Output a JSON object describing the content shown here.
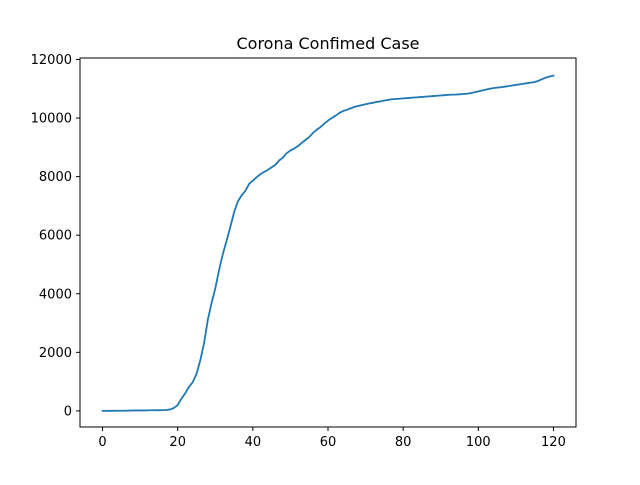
{
  "chart_data": {
    "type": "line",
    "title": "Corona Confimed Case",
    "xlabel": "",
    "ylabel": "",
    "xlim": [
      -6,
      126
    ],
    "ylim": [
      -550,
      12050
    ],
    "xticks": [
      0,
      20,
      40,
      60,
      80,
      100,
      120
    ],
    "yticks": [
      0,
      2000,
      4000,
      6000,
      8000,
      10000,
      12000
    ],
    "grid": false,
    "legend": "none",
    "series": [
      {
        "color": "#1f77b4",
        "x": [
          0,
          1,
          2,
          3,
          4,
          5,
          6,
          7,
          8,
          9,
          10,
          11,
          12,
          13,
          14,
          15,
          16,
          17,
          18,
          19,
          20,
          21,
          22,
          23,
          24,
          25,
          26,
          27,
          28,
          29,
          30,
          31,
          32,
          33,
          34,
          35,
          36,
          37,
          38,
          39,
          40,
          41,
          42,
          43,
          44,
          45,
          46,
          47,
          48,
          49,
          50,
          51,
          52,
          53,
          54,
          55,
          56,
          57,
          58,
          59,
          60,
          61,
          62,
          63,
          64,
          65,
          66,
          67,
          68,
          69,
          70,
          71,
          72,
          73,
          74,
          75,
          76,
          77,
          78,
          79,
          80,
          81,
          82,
          83,
          84,
          85,
          86,
          87,
          88,
          89,
          90,
          91,
          92,
          93,
          94,
          95,
          96,
          97,
          98,
          99,
          100,
          101,
          102,
          103,
          104,
          105,
          106,
          107,
          108,
          109,
          110,
          111,
          112,
          113,
          114,
          115,
          116,
          117,
          118,
          119,
          120
        ],
        "y": [
          1,
          1,
          2,
          3,
          4,
          4,
          4,
          11,
          12,
          15,
          15,
          16,
          19,
          22,
          23,
          24,
          26,
          30,
          50,
          100,
          200,
          420,
          600,
          820,
          980,
          1260,
          1720,
          2300,
          3100,
          3680,
          4180,
          4800,
          5350,
          5800,
          6280,
          6780,
          7150,
          7360,
          7510,
          7750,
          7860,
          7980,
          8080,
          8160,
          8230,
          8320,
          8400,
          8550,
          8650,
          8800,
          8890,
          8960,
          9040,
          9150,
          9250,
          9350,
          9490,
          9600,
          9690,
          9810,
          9910,
          10000,
          10080,
          10170,
          10240,
          10280,
          10330,
          10380,
          10410,
          10440,
          10470,
          10500,
          10520,
          10550,
          10570,
          10600,
          10620,
          10640,
          10650,
          10660,
          10670,
          10680,
          10690,
          10700,
          10710,
          10720,
          10730,
          10740,
          10750,
          10760,
          10770,
          10780,
          10790,
          10800,
          10800,
          10810,
          10820,
          10830,
          10850,
          10880,
          10910,
          10940,
          10970,
          11000,
          11020,
          11040,
          11050,
          11070,
          11090,
          11110,
          11130,
          11150,
          11170,
          11190,
          11210,
          11230,
          11270,
          11330,
          11380,
          11420,
          11450
        ]
      }
    ]
  }
}
